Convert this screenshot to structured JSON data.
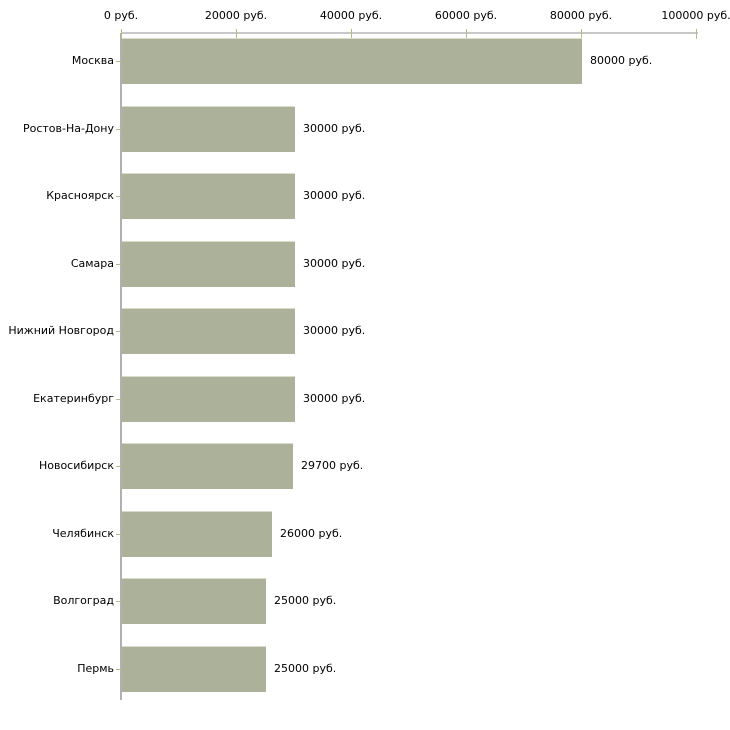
{
  "chart_data": {
    "type": "bar",
    "orientation": "horizontal",
    "title": "",
    "xlabel": "",
    "ylabel": "",
    "unit": "руб.",
    "xlim": [
      0,
      100000
    ],
    "grid": false,
    "legend": false,
    "tick_values": [
      0,
      20000,
      40000,
      60000,
      80000,
      100000
    ],
    "tick_labels": [
      "0 руб.",
      "20000 руб.",
      "40000 руб.",
      "60000 руб.",
      "80000 руб.",
      "100000 руб."
    ],
    "categories": [
      "Москва",
      "Ростов-На-Дону",
      "Красноярск",
      "Самара",
      "Нижний Новгород",
      "Екатеринбург",
      "Новосибирск",
      "Челябинск",
      "Волгоград",
      "Пермь"
    ],
    "values": [
      80000,
      30000,
      30000,
      30000,
      30000,
      30000,
      29700,
      26000,
      25000,
      25000
    ],
    "value_labels": [
      "80000 руб.",
      "30000 руб.",
      "30000 руб.",
      "30000 руб.",
      "30000 руб.",
      "30000 руб.",
      "29700 руб.",
      "26000 руб.",
      "25000 руб.",
      "25000 руб."
    ]
  },
  "colors": {
    "bar_fill": "#abb299",
    "bar_top_highlight": "#d9dcca",
    "x_axis_line": "#c8c8c8",
    "y_axis_line": "#b0b0b0",
    "tick_mark": "#b9bc85",
    "text": "#000000",
    "background": "#ffffff"
  }
}
